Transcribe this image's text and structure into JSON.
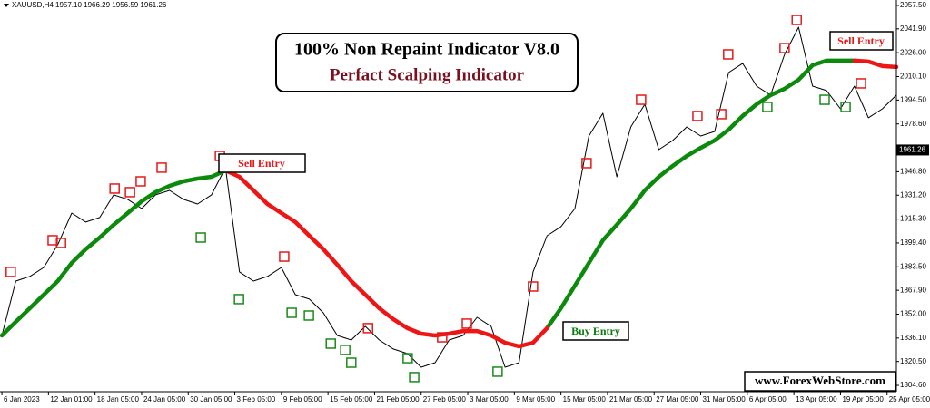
{
  "chart_data": {
    "type": "line",
    "info": "XAUUSD,H4  1957.10 1966.29 1956.59 1961.26",
    "title": "100% Non Repaint Indicator V8.0",
    "subtitle": "Perfact Scalping Indicator",
    "annotations": [
      "Sell Entry",
      "Sell Entry",
      "Buy Entry",
      "www.ForexWebStore.com"
    ],
    "last_price": {
      "value": 1961.26,
      "label": "1961.26"
    },
    "x": [
      0,
      3,
      6,
      9,
      12,
      15,
      18,
      21,
      24,
      27,
      30,
      33,
      36,
      39,
      42,
      45,
      48,
      51,
      54,
      57,
      60,
      63,
      66,
      69,
      72,
      75,
      78,
      81,
      84,
      87,
      90,
      93,
      96,
      99,
      102,
      105,
      108,
      111,
      114,
      117,
      120,
      123,
      126,
      129,
      132,
      135,
      138,
      141,
      144,
      147,
      150,
      153,
      156,
      159,
      162,
      165,
      168,
      171,
      174,
      177,
      180,
      183,
      186,
      189,
      192
    ],
    "series": [
      {
        "color": "#000000",
        "width": 1,
        "values": [
          1837.8,
          1874.0,
          1877.1,
          1883.1,
          1898.2,
          1919.3,
          1913.3,
          1916.3,
          1931.4,
          1928.4,
          1922.3,
          1931.4,
          1934.4,
          1928.4,
          1925.3,
          1931.4,
          1949.5,
          1880.1,
          1874.0,
          1877.1,
          1883.1,
          1865.0,
          1862.0,
          1852.9,
          1837.8,
          1834.8,
          1843.9,
          1834.8,
          1828.8,
          1825.8,
          1816.7,
          1819.7,
          1834.8,
          1837.8,
          1849.9,
          1843.9,
          1816.7,
          1819.7,
          1880.1,
          1904.2,
          1910.2,
          1922.3,
          1970.6,
          1985.7,
          1943.4,
          1976.6,
          1991.7,
          1961.5,
          1967.6,
          1976.6,
          1970.6,
          1973.6,
          2012.8,
          2018.9,
          2003.8,
          1997.8,
          2024.9,
          2043.0,
          2003.8,
          2000.8,
          1988.7,
          2003.8,
          1982.7,
          1988.7,
          1997.8
        ]
      },
      {
        "color": "#0b8a0b",
        "width": 4.5,
        "values": [
          1837.8,
          1846.9,
          1855.9,
          1865.0,
          1874.0,
          1886.1,
          1895.2,
          1903.0,
          1911.5,
          1919.3,
          1927.1,
          1933.2,
          1937.4,
          1940.4,
          1942.2,
          1943.4,
          1947.7,
          null,
          null,
          null,
          null,
          null,
          null,
          null,
          null,
          null,
          null,
          null,
          null,
          null,
          null,
          null,
          null,
          null,
          null,
          null,
          null,
          null,
          null,
          1842.7,
          1855.9,
          1871.0,
          1886.1,
          1901.2,
          1911.5,
          1922.3,
          1934.4,
          1943.4,
          1950.7,
          1957.3,
          1962.7,
          1967.6,
          1974.8,
          1983.9,
          1991.7,
          1997.8,
          2002.0,
          2008.0,
          2017.7,
          2020.7,
          2020.7,
          2020.7,
          null,
          null,
          null
        ]
      },
      {
        "color": "#ee1515",
        "width": 4.5,
        "values": [
          null,
          null,
          null,
          null,
          null,
          null,
          null,
          null,
          null,
          null,
          null,
          null,
          null,
          null,
          null,
          null,
          1947.7,
          1943.4,
          1934.4,
          1925.3,
          1919.3,
          1913.3,
          1904.2,
          1895.2,
          1884.9,
          1874.0,
          1865.0,
          1855.9,
          1848.7,
          1842.7,
          1839.0,
          1837.8,
          1839.0,
          1840.8,
          1840.8,
          1837.8,
          1833.0,
          1830.6,
          1833.0,
          1842.7,
          null,
          null,
          null,
          null,
          null,
          null,
          null,
          null,
          null,
          null,
          null,
          null,
          null,
          null,
          null,
          null,
          null,
          null,
          null,
          null,
          null,
          2020.7,
          2020.1,
          2017.1,
          2016.5
        ]
      }
    ],
    "markers": [
      {
        "color": "#e51a1a",
        "x": [
          1.9,
          10.9,
          12.7,
          24.2,
          27.5,
          29.8,
          34.3,
          46.8,
          60.6,
          78.6,
          94.5,
          99.8,
          114.0,
          125.5,
          137.2,
          149.3,
          154.4,
          155.9,
          168.0,
          170.6,
          184.4
        ],
        "values": [
          1880.1,
          1901.2,
          1899.4,
          1935.6,
          1933.2,
          1940.4,
          1949.5,
          1957.3,
          1890.3,
          1842.7,
          1836.6,
          1845.7,
          1870.4,
          1952.5,
          1994.7,
          1983.9,
          1985.1,
          2024.9,
          2029.1,
          2047.8,
          2005.6
        ]
      },
      {
        "color": "#1a8a1a",
        "x": [
          42.7,
          50.9,
          62.2,
          65.9,
          70.6,
          73.7,
          75.0,
          87.1,
          88.5,
          106.4,
          164.3,
          176.6,
          181.1
        ],
        "values": [
          1903.0,
          1862.0,
          1852.9,
          1851.1,
          1832.4,
          1828.2,
          1819.7,
          1822.7,
          1810.1,
          1813.7,
          1989.9,
          1994.7,
          1989.9
        ]
      }
    ],
    "xlim": [
      -0.4,
      192
    ],
    "ylim": [
      1800.4,
      2061.1
    ],
    "xticks": [
      {
        "value": 0,
        "label": "6 Jan 2023"
      },
      {
        "value": 10,
        "label": "12 Jan 01:00"
      },
      {
        "value": 20,
        "label": "18 Jan 05:00"
      },
      {
        "value": 30,
        "label": "24 Jan 05:00"
      },
      {
        "value": 40,
        "label": "30 Jan 05:00"
      },
      {
        "value": 50,
        "label": "3 Feb 05:00"
      },
      {
        "value": 60,
        "label": "9 Feb 05:00"
      },
      {
        "value": 70,
        "label": "15 Feb 05:00"
      },
      {
        "value": 80,
        "label": "21 Feb 05:00"
      },
      {
        "value": 90,
        "label": "27 Feb 05:00"
      },
      {
        "value": 100,
        "label": "3 Mar 05:00"
      },
      {
        "value": 110,
        "label": "9 Mar 05:00"
      },
      {
        "value": 120,
        "label": "15 Mar 05:00"
      },
      {
        "value": 130,
        "label": "21 Mar 05:00"
      },
      {
        "value": 140,
        "label": "27 Mar 05:00"
      },
      {
        "value": 150,
        "label": "31 Mar 05:00"
      },
      {
        "value": 160,
        "label": "6 Apr 05:00"
      },
      {
        "value": 170,
        "label": "13 Apr 05:00"
      },
      {
        "value": 180,
        "label": "19 Apr 05:00"
      },
      {
        "value": 190,
        "label": "25 Apr 05:00"
      }
    ],
    "yticks": [
      {
        "value": 2057.5,
        "label": "2057.50"
      },
      {
        "value": 2041.9,
        "label": "2041.90"
      },
      {
        "value": 2026.0,
        "label": "2026.00"
      },
      {
        "value": 2010.1,
        "label": "2010.10"
      },
      {
        "value": 1994.5,
        "label": "1994.50"
      },
      {
        "value": 1978.6,
        "label": "1978.60"
      },
      {
        "value": 1946.8,
        "label": "1946.80"
      },
      {
        "value": 1931.2,
        "label": "1931.20"
      },
      {
        "value": 1915.3,
        "label": "1915.30"
      },
      {
        "value": 1899.4,
        "label": "1899.40"
      },
      {
        "value": 1883.5,
        "label": "1883.50"
      },
      {
        "value": 1867.9,
        "label": "1867.90"
      },
      {
        "value": 1852.0,
        "label": "1852.00"
      },
      {
        "value": 1836.1,
        "label": "1836.10"
      },
      {
        "value": 1820.5,
        "label": "1820.50"
      },
      {
        "value": 1804.6,
        "label": "1804.60"
      }
    ]
  }
}
